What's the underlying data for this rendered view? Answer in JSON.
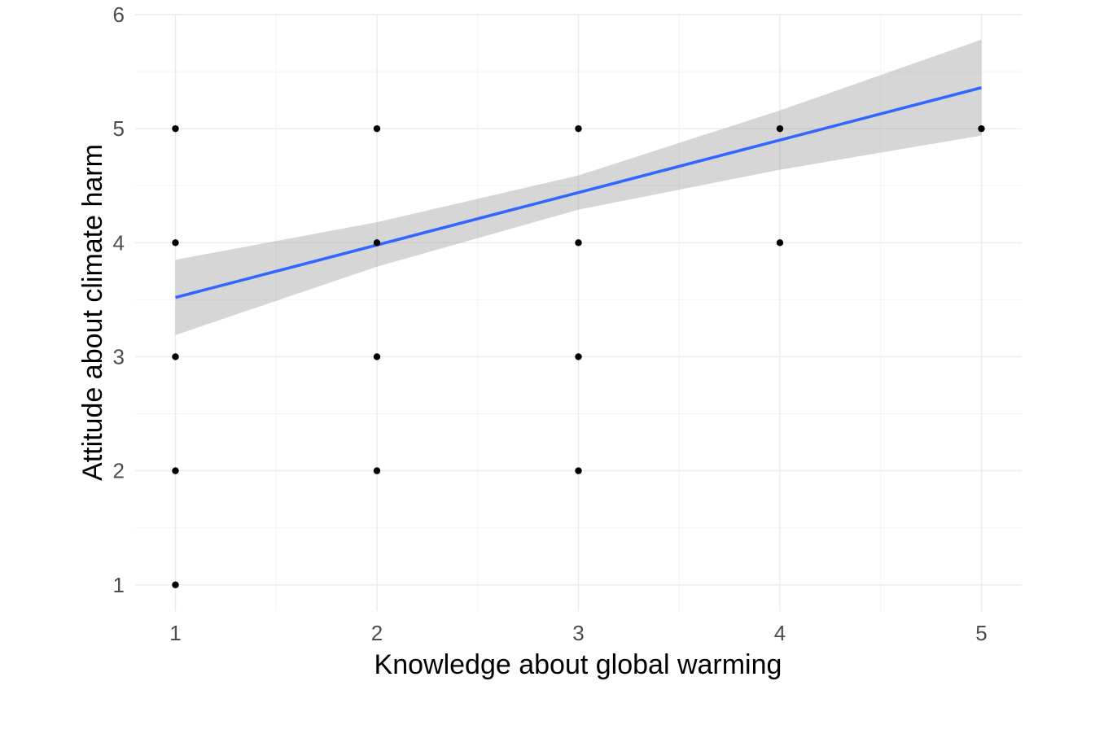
{
  "chart_data": {
    "type": "scatter",
    "xlabel": "Knowledge about global warming",
    "ylabel": "Attitude about climate harm",
    "xlim": [
      0.8,
      5.2
    ],
    "ylim": [
      0.77,
      6.0
    ],
    "x_ticks": [
      1,
      2,
      3,
      4,
      5
    ],
    "y_ticks": [
      1,
      2,
      3,
      4,
      5,
      6
    ],
    "grid": true,
    "points": [
      {
        "x": 1,
        "y": 5
      },
      {
        "x": 1,
        "y": 4
      },
      {
        "x": 1,
        "y": 3
      },
      {
        "x": 1,
        "y": 2
      },
      {
        "x": 1,
        "y": 1
      },
      {
        "x": 2,
        "y": 5
      },
      {
        "x": 2,
        "y": 4
      },
      {
        "x": 2,
        "y": 3
      },
      {
        "x": 2,
        "y": 2
      },
      {
        "x": 3,
        "y": 5
      },
      {
        "x": 3,
        "y": 4
      },
      {
        "x": 3,
        "y": 3
      },
      {
        "x": 3,
        "y": 2
      },
      {
        "x": 4,
        "y": 5
      },
      {
        "x": 4,
        "y": 4
      },
      {
        "x": 5,
        "y": 5
      }
    ],
    "fit_line": {
      "x": [
        1,
        5
      ],
      "y": [
        3.52,
        5.36
      ],
      "color": "#3366ff"
    },
    "confidence_band": {
      "x": [
        1,
        2,
        3,
        4,
        5
      ],
      "lower": [
        3.19,
        3.79,
        4.29,
        4.64,
        4.94
      ],
      "upper": [
        3.85,
        4.18,
        4.59,
        5.16,
        5.78
      ],
      "color": "#999999"
    },
    "point_color": "#000000"
  }
}
